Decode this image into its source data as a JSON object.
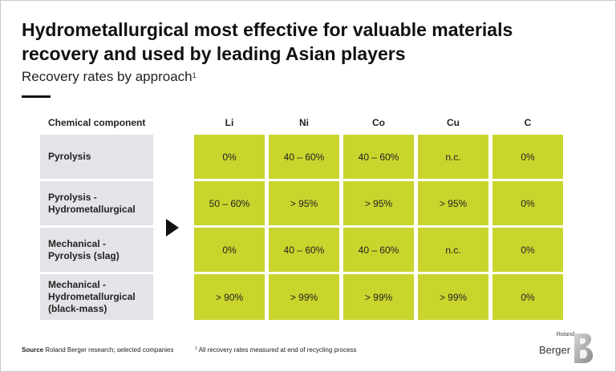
{
  "title": "Hydrometallurgical most effective for valuable materials recovery and used by leading Asian players",
  "subtitle": "Recovery rates by approach",
  "subtitle_footnote_mark": "1",
  "table": {
    "row_header": "Chemical component",
    "columns": [
      "Li",
      "Ni",
      "Co",
      "Cu",
      "C"
    ],
    "rows": [
      {
        "label": "Pyrolysis",
        "values": [
          "0%",
          "40 – 60%",
          "40 – 60%",
          "n.c.",
          "0%"
        ]
      },
      {
        "label": "Pyrolysis -\nHydrometallurgical",
        "values": [
          "50 – 60%",
          "> 95%",
          "> 95%",
          "> 95%",
          "0%"
        ]
      },
      {
        "label": "Mechanical -\nPyrolysis (slag)",
        "values": [
          "0%",
          "40 – 60%",
          "40 – 60%",
          "n.c.",
          "0%"
        ]
      },
      {
        "label": "Mechanical -\nHydrometallurgical\n(black-mass)",
        "values": [
          "> 90%",
          "> 99%",
          "> 99%",
          "> 99%",
          "0%"
        ]
      }
    ]
  },
  "footer": {
    "source_label": "Source",
    "source_text": "Roland Berger research; selected companies",
    "note_mark": "1",
    "note_text": "All recovery rates measured at end of recycling process"
  },
  "logo": {
    "small_text": "Roland",
    "main_text": "Berger"
  },
  "colors": {
    "cell_fill": "#c9d52d",
    "label_fill": "#e3e4e8"
  }
}
